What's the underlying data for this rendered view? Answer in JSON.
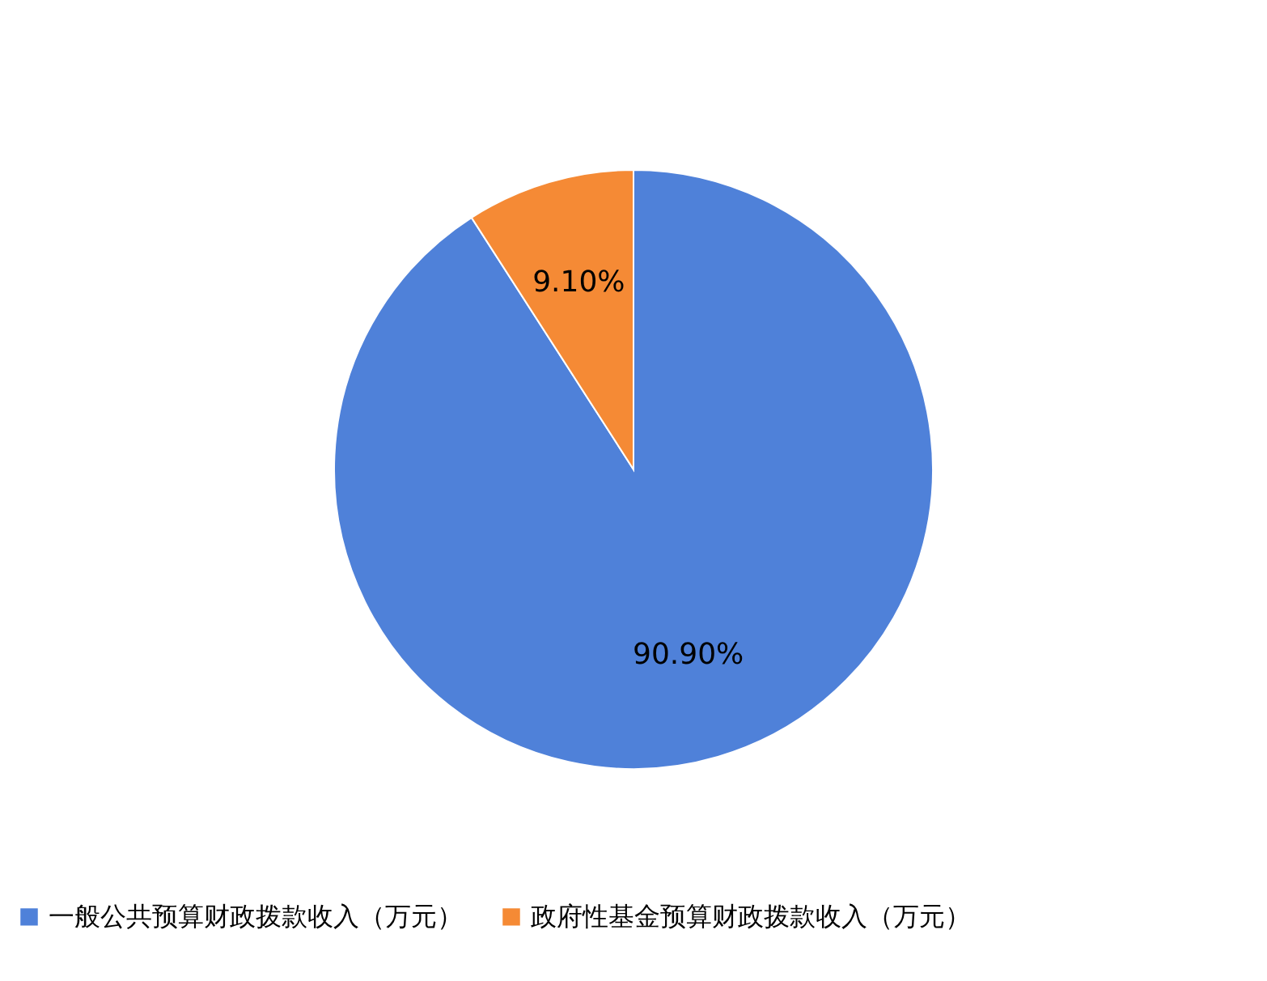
{
  "chart_data": {
    "type": "pie",
    "categories": [
      "一般公共预算财政拨款收入（万元）",
      "政府性基金预算财政拨款收入（万元）"
    ],
    "values": [
      90.9,
      9.1
    ],
    "colors": [
      "#4f81d9",
      "#f58a35"
    ],
    "value_labels": [
      "90.90%",
      "9.10%"
    ],
    "legend": "bottom"
  }
}
